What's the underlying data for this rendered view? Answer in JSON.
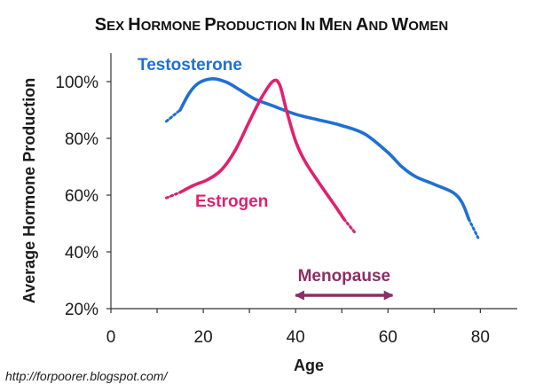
{
  "chart_data": {
    "type": "line",
    "title": "Sex Hormone Production in Men and Women",
    "xlabel": "Age",
    "ylabel": "Average Hormone Production",
    "xlim": [
      0,
      88
    ],
    "ylim": [
      20,
      110
    ],
    "x_ticks": [
      0,
      20,
      40,
      60,
      80
    ],
    "y_ticks": [
      20,
      40,
      60,
      80,
      100
    ],
    "y_tick_labels": [
      "20%",
      "40%",
      "60%",
      "80%",
      "100%"
    ],
    "grid": false,
    "series": [
      {
        "name": "Testosterone",
        "color": "#1f6fd4",
        "dotted_start": [
          [
            12,
            86
          ],
          [
            15,
            90
          ]
        ],
        "points": [
          [
            15,
            90
          ],
          [
            17,
            96
          ],
          [
            19,
            99.5
          ],
          [
            22,
            101
          ],
          [
            25,
            99.8
          ],
          [
            28,
            97
          ],
          [
            31,
            94
          ],
          [
            35,
            91.5
          ],
          [
            40,
            88.5
          ],
          [
            45,
            86.5
          ],
          [
            50,
            84.5
          ],
          [
            55,
            81.5
          ],
          [
            60,
            75
          ],
          [
            63,
            70
          ],
          [
            66,
            66.5
          ],
          [
            70,
            63.8
          ],
          [
            74,
            61
          ],
          [
            76,
            57.5
          ],
          [
            77.5,
            51.5
          ]
        ],
        "dotted_end": [
          [
            77.5,
            51.5
          ],
          [
            79.5,
            45
          ]
        ]
      },
      {
        "name": "Estrogen",
        "color": "#e0206e",
        "dotted_start": [
          [
            12,
            59
          ],
          [
            15,
            61
          ]
        ],
        "points": [
          [
            15,
            61
          ],
          [
            18,
            63.5
          ],
          [
            21,
            65.5
          ],
          [
            24,
            69
          ],
          [
            27,
            76
          ],
          [
            30,
            86
          ],
          [
            32.5,
            94
          ],
          [
            35,
            100
          ],
          [
            36.5,
            99
          ],
          [
            38,
            90
          ],
          [
            40,
            79
          ],
          [
            42,
            72
          ],
          [
            45,
            64.5
          ],
          [
            48,
            57.5
          ],
          [
            50.5,
            51.5
          ]
        ],
        "dotted_end": [
          [
            50.5,
            51.5
          ],
          [
            53,
            46.5
          ]
        ]
      }
    ],
    "annotations": [
      {
        "text": "Menopause",
        "x_range": [
          40,
          61
        ],
        "y": 25,
        "color": "#8b2f64",
        "type": "double-arrow"
      }
    ]
  },
  "source_text": "http://forpoorer.blogspot.com/"
}
